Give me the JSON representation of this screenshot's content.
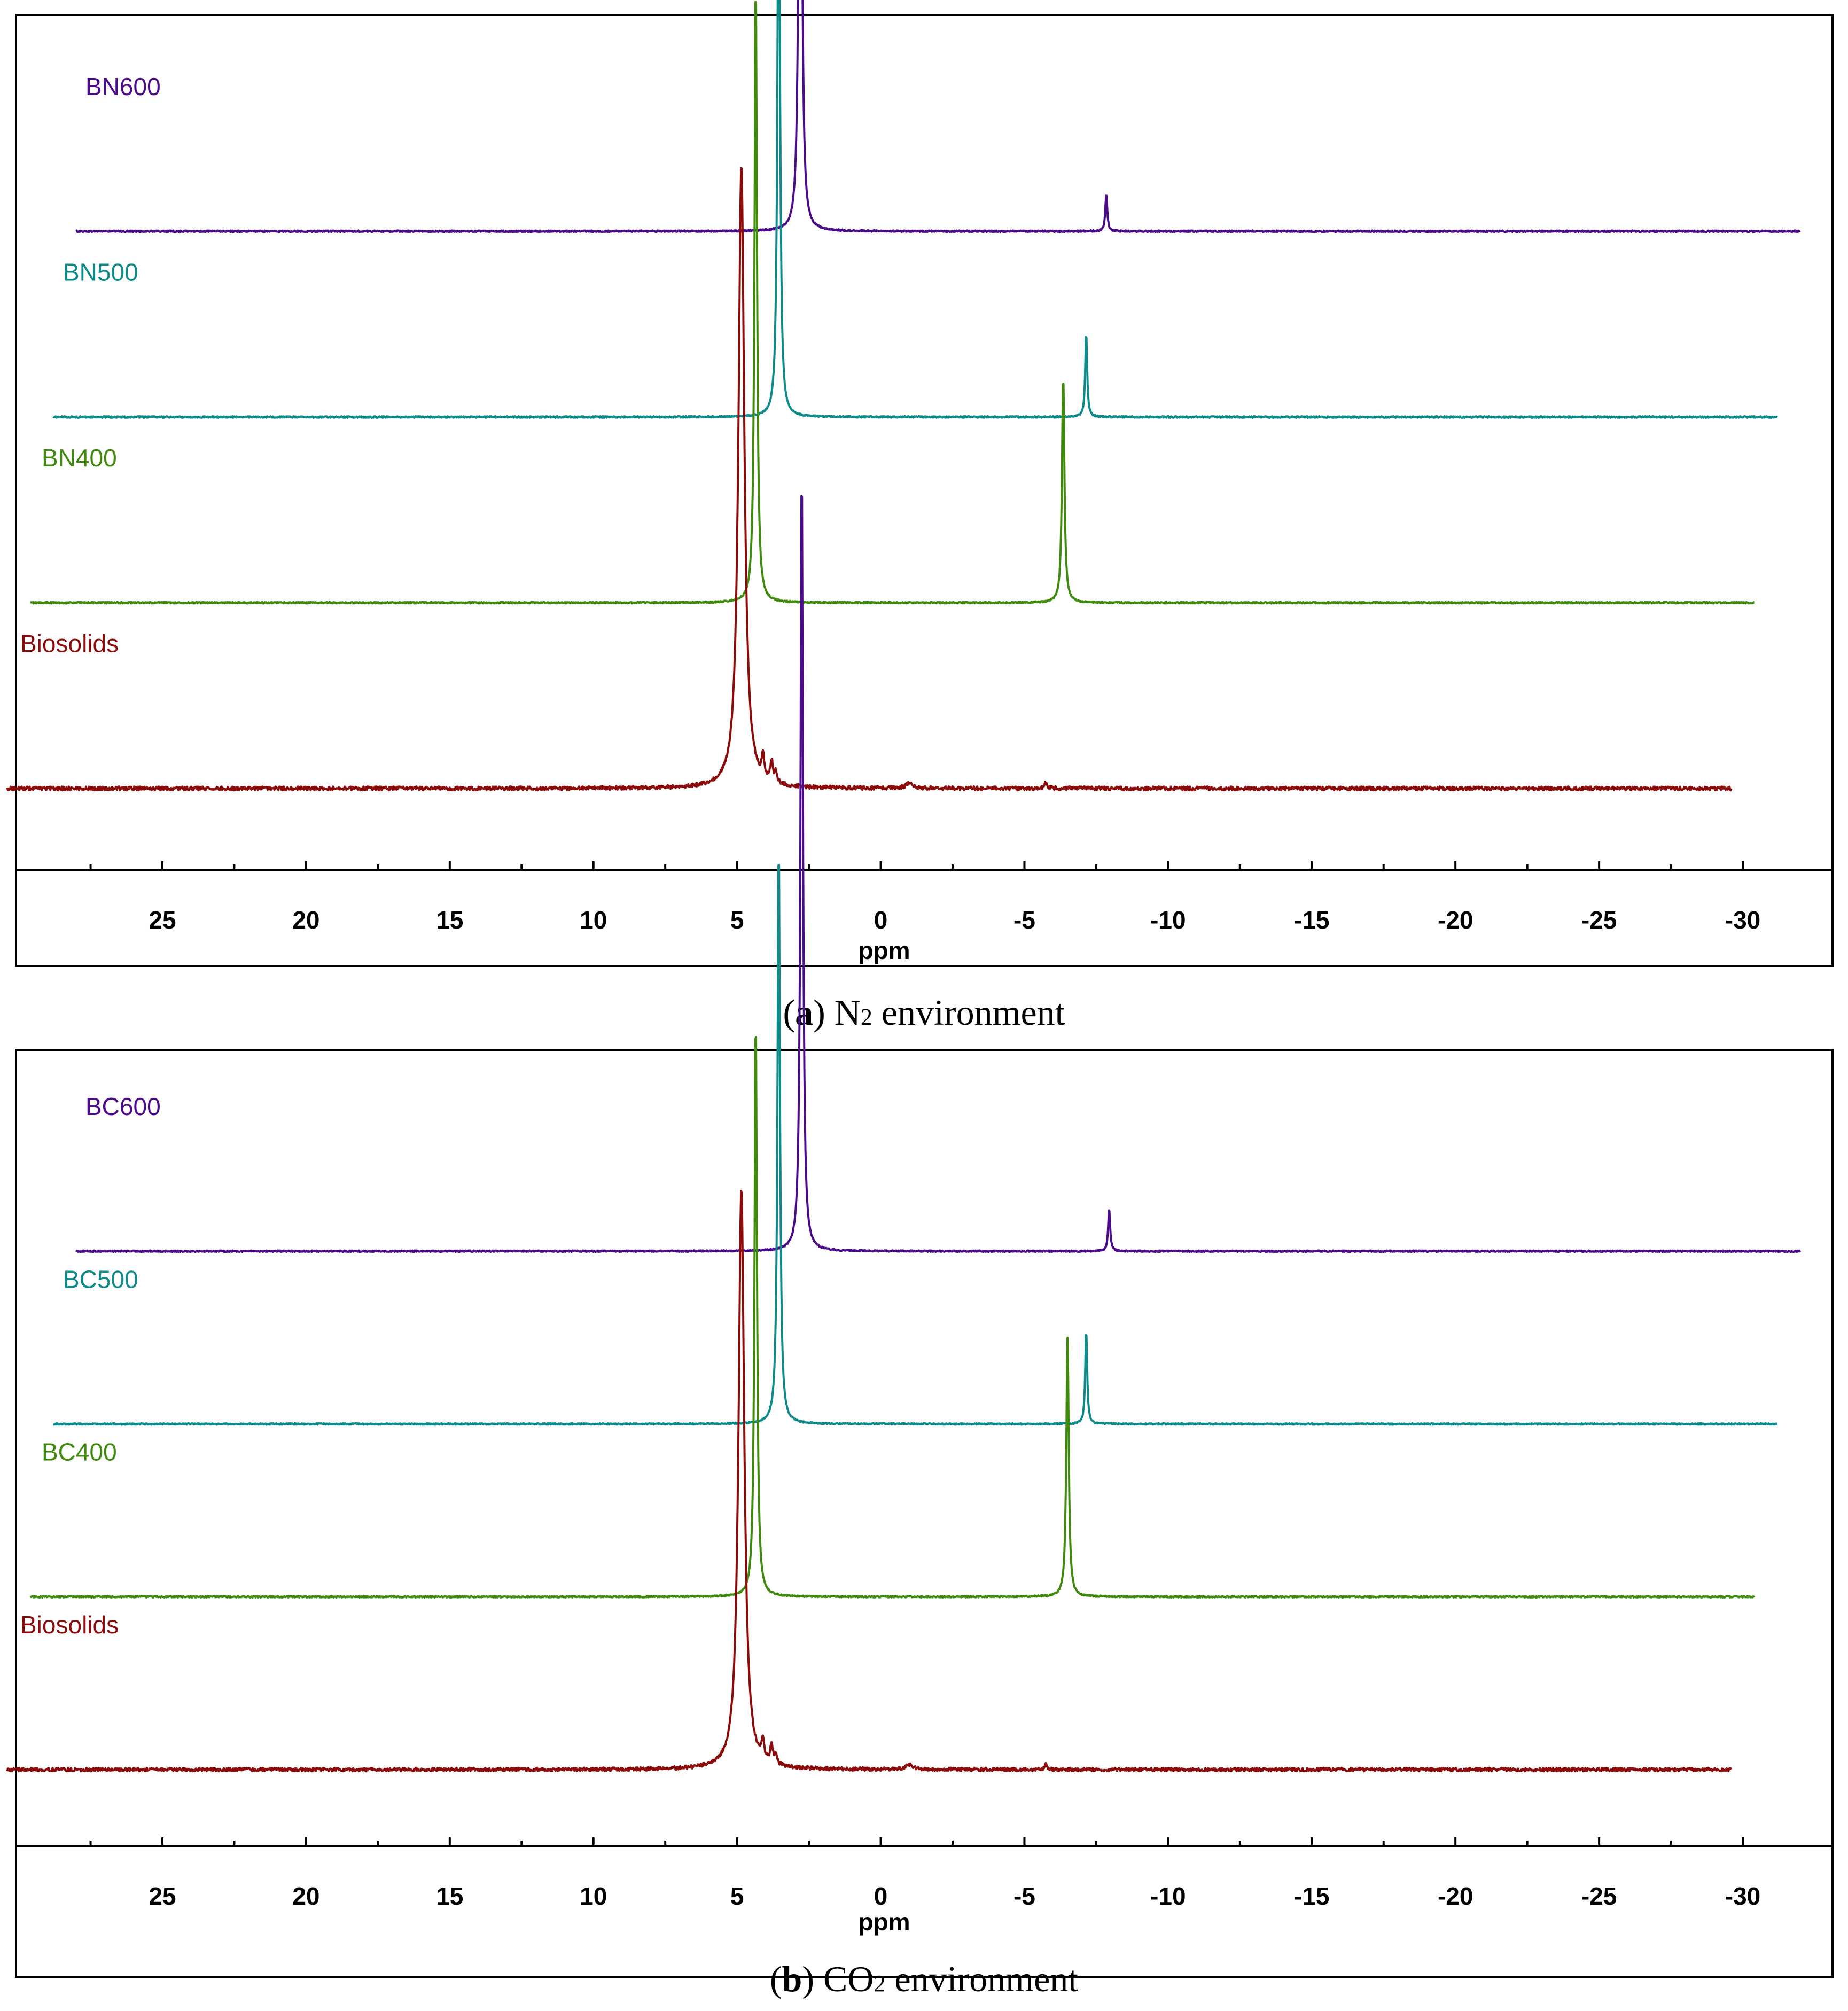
{
  "chart_data": [
    {
      "type": "line",
      "panel": "a",
      "caption": {
        "open": "(",
        "letter": "a",
        "close": ")",
        "text_pre": " N",
        "sub": "2",
        "text_post": " environment"
      },
      "xlabel": "ppm",
      "xlim": [
        28,
        -32
      ],
      "xticks": [
        25,
        20,
        15,
        10,
        5,
        0,
        -5,
        -10,
        -15,
        -20,
        -25,
        -30
      ],
      "xtick_labels": [
        "25",
        "20",
        "15",
        "10",
        "5",
        "0",
        "-5",
        "-10",
        "-15",
        "-20",
        "-25",
        "-30"
      ],
      "grid": false,
      "series": [
        {
          "name": "BN600",
          "color": "#4B0A8A",
          "range": [
            28,
            -32
          ],
          "baseline_level": 0.745,
          "noise": 0.0009,
          "peaks": [
            {
              "ppm": 2.8,
              "height": 1.0,
              "width": 0.05
            },
            {
              "ppm": -7.85,
              "height": 0.045,
              "width": 0.04
            }
          ]
        },
        {
          "name": "BN500",
          "color": "#0E8A8A",
          "range": [
            28.8,
            -31.2
          ],
          "baseline_level": 0.525,
          "noise": 0.0009,
          "peaks": [
            {
              "ppm": 3.55,
              "height": 0.74,
              "width": 0.05
            },
            {
              "ppm": -7.15,
              "height": 0.1,
              "width": 0.04
            }
          ]
        },
        {
          "name": "BN400",
          "color": "#3F8A0E",
          "range": [
            29.6,
            -30.4
          ],
          "baseline_level": 0.305,
          "noise": 0.0009,
          "peaks": [
            {
              "ppm": 4.35,
              "height": 0.74,
              "width": 0.05
            },
            {
              "ppm": -6.35,
              "height": 0.27,
              "width": 0.05
            }
          ]
        },
        {
          "name": "Biosolids",
          "color": "#8B0A0A",
          "range": [
            30.4,
            -29.6
          ],
          "baseline_level": 0.085,
          "noise": 0.0022,
          "peaks": [
            {
              "ppm": 4.85,
              "height": 0.74,
              "width": 0.12
            },
            {
              "ppm": 4.1,
              "height": 0.025,
              "width": 0.05
            },
            {
              "ppm": 3.8,
              "height": 0.025,
              "width": 0.05
            },
            {
              "ppm": 3.65,
              "height": 0.012,
              "width": 0.05
            },
            {
              "ppm": -1.0,
              "height": 0.006,
              "width": 0.15
            },
            {
              "ppm": -5.75,
              "height": 0.008,
              "width": 0.05
            }
          ]
        }
      ]
    },
    {
      "type": "line",
      "panel": "b",
      "caption": {
        "open": "(",
        "letter": "b",
        "close": ")",
        "text_pre": " CO",
        "sub": "2",
        "text_post": " environment"
      },
      "xlabel": "ppm",
      "xlim": [
        28,
        -32
      ],
      "xticks": [
        25,
        20,
        15,
        10,
        5,
        0,
        -5,
        -10,
        -15,
        -20,
        -25,
        -30
      ],
      "xtick_labels": [
        "25",
        "20",
        "15",
        "10",
        "5",
        "0",
        "-5",
        "-10",
        "-15",
        "-20",
        "-25",
        "-30"
      ],
      "grid": false,
      "series": [
        {
          "name": "BC600",
          "color": "#4B0A8A",
          "range": [
            28,
            -32
          ],
          "baseline_level": 0.745,
          "noise": 0.0009,
          "peaks": [
            {
              "ppm": 2.75,
              "height": 1.0,
              "width": 0.05
            },
            {
              "ppm": -7.95,
              "height": 0.055,
              "width": 0.04
            }
          ]
        },
        {
          "name": "BC500",
          "color": "#0E8A8A",
          "range": [
            28.8,
            -31.2
          ],
          "baseline_level": 0.525,
          "noise": 0.0009,
          "peaks": [
            {
              "ppm": 3.55,
              "height": 0.74,
              "width": 0.05
            },
            {
              "ppm": -7.15,
              "height": 0.12,
              "width": 0.04
            }
          ]
        },
        {
          "name": "BC400",
          "color": "#3F8A0E",
          "range": [
            29.6,
            -30.4
          ],
          "baseline_level": 0.305,
          "noise": 0.0009,
          "peaks": [
            {
              "ppm": 4.35,
              "height": 0.74,
              "width": 0.05
            },
            {
              "ppm": -6.5,
              "height": 0.33,
              "width": 0.05
            }
          ]
        },
        {
          "name": "Biosolids",
          "color": "#8B0A0A",
          "range": [
            30.4,
            -29.6
          ],
          "baseline_level": 0.085,
          "noise": 0.0022,
          "peaks": [
            {
              "ppm": 4.85,
              "height": 0.74,
              "width": 0.12
            },
            {
              "ppm": 4.1,
              "height": 0.025,
              "width": 0.05
            },
            {
              "ppm": 3.8,
              "height": 0.025,
              "width": 0.05
            },
            {
              "ppm": 3.65,
              "height": 0.012,
              "width": 0.05
            },
            {
              "ppm": -1.0,
              "height": 0.006,
              "width": 0.15
            },
            {
              "ppm": -5.75,
              "height": 0.008,
              "width": 0.05
            }
          ]
        }
      ]
    }
  ]
}
